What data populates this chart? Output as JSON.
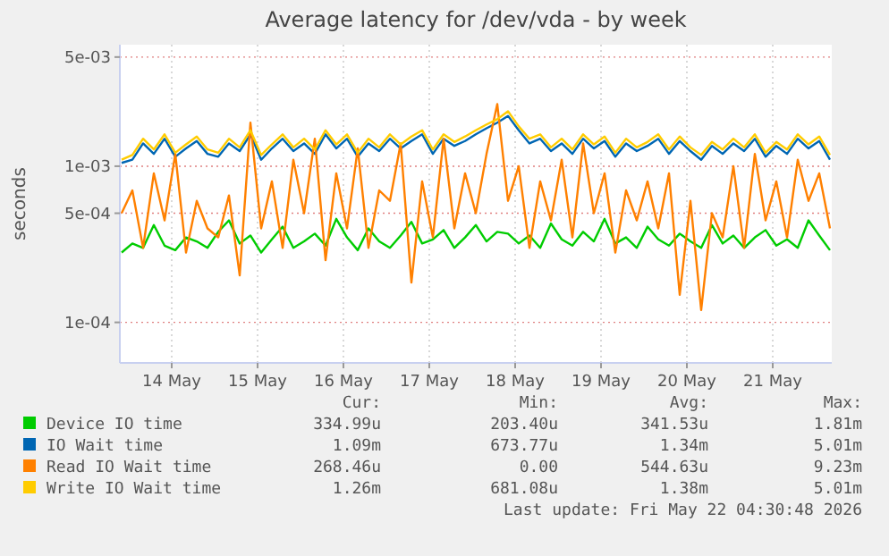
{
  "chart_data": {
    "type": "line",
    "title": "Average latency for /dev/vda - by week",
    "ylabel": "seconds",
    "log": true,
    "grid": true,
    "legend": "bottom left",
    "marker": "none",
    "line_style": "solid",
    "xlim": [
      "2026-05-13T21:30",
      "2026-05-22T04:30"
    ],
    "xticks": [
      {
        "value": "2026-05-14T12:00",
        "label": "14 May"
      },
      {
        "value": "2026-05-15T12:00",
        "label": "15 May"
      },
      {
        "value": "2026-05-16T12:00",
        "label": "16 May"
      },
      {
        "value": "2026-05-17T12:00",
        "label": "17 May"
      },
      {
        "value": "2026-05-18T12:00",
        "label": "18 May"
      },
      {
        "value": "2026-05-19T12:00",
        "label": "19 May"
      },
      {
        "value": "2026-05-20T12:00",
        "label": "20 May"
      },
      {
        "value": "2026-05-21T12:00",
        "label": "21 May"
      }
    ],
    "ylim": [
      5.5e-05,
      0.006
    ],
    "yticks": [
      {
        "value": 0.0001,
        "label": "1e-04"
      },
      {
        "value": 0.0005,
        "label": "5e-04"
      },
      {
        "value": 0.001,
        "label": "1e-03"
      },
      {
        "value": 0.005,
        "label": "5e-03"
      }
    ],
    "x": [
      "2026-05-13T22:00",
      "2026-05-14T01:00",
      "2026-05-14T04:00",
      "2026-05-14T07:00",
      "2026-05-14T10:00",
      "2026-05-14T13:00",
      "2026-05-14T16:00",
      "2026-05-14T19:00",
      "2026-05-14T22:00",
      "2026-05-15T01:00",
      "2026-05-15T04:00",
      "2026-05-15T07:00",
      "2026-05-15T10:00",
      "2026-05-15T13:00",
      "2026-05-15T16:00",
      "2026-05-15T19:00",
      "2026-05-15T22:00",
      "2026-05-16T01:00",
      "2026-05-16T04:00",
      "2026-05-16T07:00",
      "2026-05-16T10:00",
      "2026-05-16T13:00",
      "2026-05-16T16:00",
      "2026-05-16T19:00",
      "2026-05-16T22:00",
      "2026-05-17T01:00",
      "2026-05-17T04:00",
      "2026-05-17T07:00",
      "2026-05-17T10:00",
      "2026-05-17T13:00",
      "2026-05-17T16:00",
      "2026-05-17T19:00",
      "2026-05-17T22:00",
      "2026-05-18T01:00",
      "2026-05-18T04:00",
      "2026-05-18T07:00",
      "2026-05-18T10:00",
      "2026-05-18T13:00",
      "2026-05-18T16:00",
      "2026-05-18T19:00",
      "2026-05-18T22:00",
      "2026-05-19T01:00",
      "2026-05-19T04:00",
      "2026-05-19T07:00",
      "2026-05-19T10:00",
      "2026-05-19T13:00",
      "2026-05-19T16:00",
      "2026-05-19T19:00",
      "2026-05-19T22:00",
      "2026-05-20T01:00",
      "2026-05-20T04:00",
      "2026-05-20T07:00",
      "2026-05-20T10:00",
      "2026-05-20T13:00",
      "2026-05-20T16:00",
      "2026-05-20T19:00",
      "2026-05-20T22:00",
      "2026-05-21T01:00",
      "2026-05-21T04:00",
      "2026-05-21T07:00",
      "2026-05-21T10:00",
      "2026-05-21T13:00",
      "2026-05-21T16:00",
      "2026-05-21T19:00",
      "2026-05-21T22:00",
      "2026-05-22T01:00",
      "2026-05-22T04:00"
    ],
    "series": [
      {
        "name": "Device IO time",
        "color": "#00cc00",
        "values": [
          0.00028,
          0.00032,
          0.0003,
          0.00042,
          0.00031,
          0.00029,
          0.00035,
          0.00033,
          0.0003,
          0.00038,
          0.00045,
          0.00032,
          0.00036,
          0.00028,
          0.00034,
          0.00041,
          0.0003,
          0.00033,
          0.00037,
          0.00031,
          0.00046,
          0.00035,
          0.00029,
          0.0004,
          0.00033,
          0.0003,
          0.00036,
          0.00044,
          0.00032,
          0.00034,
          0.00039,
          0.0003,
          0.00035,
          0.00042,
          0.00033,
          0.00038,
          0.00037,
          0.00032,
          0.00036,
          0.0003,
          0.00043,
          0.00034,
          0.00031,
          0.00038,
          0.00033,
          0.00046,
          0.00032,
          0.00035,
          0.0003,
          0.00041,
          0.00034,
          0.00031,
          0.00037,
          0.00033,
          0.0003,
          0.00042,
          0.00032,
          0.00036,
          0.0003,
          0.00035,
          0.00039,
          0.00031,
          0.00034,
          0.0003,
          0.00045,
          0.00036,
          0.00029
        ]
      },
      {
        "name": "IO Wait time",
        "color": "#0066b3",
        "values": [
          0.00105,
          0.0011,
          0.0014,
          0.0012,
          0.0015,
          0.00115,
          0.0013,
          0.00145,
          0.0012,
          0.00115,
          0.0014,
          0.00125,
          0.0016,
          0.0011,
          0.0013,
          0.0015,
          0.00125,
          0.0014,
          0.0012,
          0.0016,
          0.0013,
          0.0015,
          0.00115,
          0.0014,
          0.00125,
          0.0015,
          0.0013,
          0.00145,
          0.0016,
          0.0012,
          0.0015,
          0.00135,
          0.00145,
          0.0016,
          0.00175,
          0.0019,
          0.0021,
          0.0017,
          0.0014,
          0.0015,
          0.00125,
          0.0014,
          0.0012,
          0.0015,
          0.0013,
          0.00145,
          0.00115,
          0.0014,
          0.00125,
          0.00135,
          0.0015,
          0.0012,
          0.00145,
          0.00125,
          0.0011,
          0.00135,
          0.0012,
          0.0014,
          0.00125,
          0.0015,
          0.00115,
          0.00135,
          0.0012,
          0.0015,
          0.0013,
          0.00145,
          0.0011
        ]
      },
      {
        "name": "Read IO Wait time",
        "color": "#ff8000",
        "values": [
          0.0005,
          0.0007,
          0.0003,
          0.0009,
          0.00045,
          0.0012,
          0.00028,
          0.0006,
          0.0004,
          0.00035,
          0.00065,
          0.0002,
          0.0019,
          0.0004,
          0.0008,
          0.0003,
          0.0011,
          0.0005,
          0.0015,
          0.00025,
          0.0009,
          0.0004,
          0.0013,
          0.0003,
          0.0007,
          0.0006,
          0.0014,
          0.00018,
          0.0008,
          0.00035,
          0.0015,
          0.0004,
          0.0009,
          0.0005,
          0.0012,
          0.0025,
          0.0006,
          0.001,
          0.0003,
          0.0008,
          0.00045,
          0.0011,
          0.00035,
          0.0014,
          0.0005,
          0.0009,
          0.00028,
          0.0007,
          0.00045,
          0.0008,
          0.0004,
          0.0009,
          0.00015,
          0.0006,
          0.00012,
          0.0005,
          0.00035,
          0.001,
          0.0003,
          0.0012,
          0.00045,
          0.0008,
          0.00035,
          0.0011,
          0.0006,
          0.0009,
          0.0004
        ]
      },
      {
        "name": "Write IO Wait time",
        "color": "#ffcc00",
        "values": [
          0.0011,
          0.00118,
          0.0015,
          0.00128,
          0.0016,
          0.00122,
          0.00138,
          0.00155,
          0.00128,
          0.00122,
          0.0015,
          0.00132,
          0.0017,
          0.00118,
          0.00138,
          0.0016,
          0.00132,
          0.0015,
          0.00128,
          0.0017,
          0.00138,
          0.0016,
          0.00122,
          0.0015,
          0.00132,
          0.0016,
          0.00138,
          0.00155,
          0.0017,
          0.00128,
          0.0016,
          0.00143,
          0.00155,
          0.0017,
          0.00185,
          0.002,
          0.00225,
          0.0018,
          0.0015,
          0.0016,
          0.00132,
          0.0015,
          0.00128,
          0.0016,
          0.00138,
          0.00155,
          0.00122,
          0.0015,
          0.00132,
          0.00143,
          0.0016,
          0.00128,
          0.00155,
          0.00132,
          0.00118,
          0.00143,
          0.00128,
          0.0015,
          0.00132,
          0.0016,
          0.00122,
          0.00143,
          0.00128,
          0.0016,
          0.00138,
          0.00155,
          0.00118
        ]
      }
    ],
    "annotations": [
      "Cur:",
      "Min:",
      "Avg:",
      "Max:",
      "334.99u",
      "203.40u",
      "341.53u",
      "1.81m",
      "1.09m",
      "673.77u",
      "1.34m",
      "5.01m",
      "268.46u",
      "0.00",
      "544.63u",
      "9.23m",
      "1.26m",
      "681.08u",
      "1.38m",
      "5.01m",
      "Last update: Fri May 22 04:30:48 2026"
    ]
  }
}
